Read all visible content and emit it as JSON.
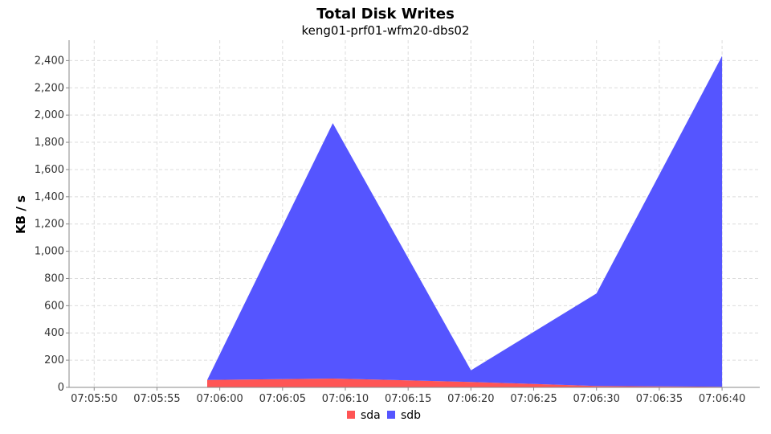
{
  "chart_data": {
    "type": "area",
    "stacked": true,
    "title": "Total Disk Writes",
    "subtitle": "keng01-prf01-wfm20-dbs02",
    "ylabel": "KB / s",
    "xlabel": "",
    "ylim": [
      0,
      2550
    ],
    "yticks": [
      0,
      200,
      400,
      600,
      800,
      1000,
      1200,
      1400,
      1600,
      1800,
      2000,
      2200,
      2400
    ],
    "ytick_labels": [
      "0",
      "200",
      "400",
      "600",
      "800",
      "1,000",
      "1,200",
      "1,400",
      "1,600",
      "1,800",
      "2,000",
      "2,200",
      "2,400"
    ],
    "xlim": [
      "07:05:48",
      "07:06:43"
    ],
    "xticks": [
      "07:05:50",
      "07:05:55",
      "07:06:00",
      "07:06:05",
      "07:06:10",
      "07:06:15",
      "07:06:20",
      "07:06:25",
      "07:06:30",
      "07:06:35",
      "07:06:40"
    ],
    "grid": true,
    "legend_position": "bottom",
    "x": [
      "07:05:59",
      "07:06:09",
      "07:06:20",
      "07:06:30",
      "07:06:40"
    ],
    "series": [
      {
        "name": "sda",
        "color": "#ff5555",
        "values": [
          55,
          65,
          40,
          10,
          5
        ]
      },
      {
        "name": "sdb",
        "color": "#5555ff",
        "values": [
          0,
          1875,
          85,
          680,
          2430
        ]
      }
    ]
  }
}
